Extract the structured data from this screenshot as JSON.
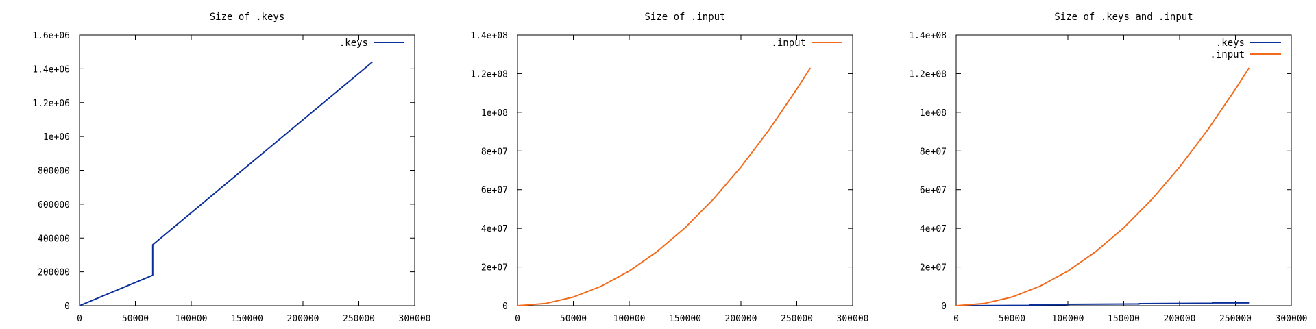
{
  "colors": {
    "keys": "#0b2f9a",
    "input": "#f26b1d"
  },
  "chart_data": [
    {
      "type": "line",
      "title": "Size of .keys",
      "xlim": [
        0,
        300000
      ],
      "ylim": [
        0,
        1600000
      ],
      "xticks": [
        0,
        50000,
        100000,
        150000,
        200000,
        250000,
        300000
      ],
      "xtick_labels": [
        "0",
        "50000",
        "100000",
        "150000",
        "200000",
        "250000",
        "300000"
      ],
      "yticks": [
        0,
        200000,
        400000,
        600000,
        800000,
        1000000,
        1200000,
        1400000,
        1600000
      ],
      "ytick_labels": [
        "0",
        "200000",
        "400000",
        "600000",
        "800000",
        "1e+06",
        "1.2e+06",
        "1.4e+06",
        "1.6e+06"
      ],
      "legend_position": "top-right",
      "series": [
        {
          "name": ".keys",
          "color": "#0b2f9a",
          "x": [
            0,
            65536,
            65536,
            262144
          ],
          "y": [
            0,
            180000,
            360000,
            1440000
          ]
        }
      ]
    },
    {
      "type": "line",
      "title": "Size of .input",
      "xlim": [
        0,
        300000
      ],
      "ylim": [
        0,
        140000000
      ],
      "xticks": [
        0,
        50000,
        100000,
        150000,
        200000,
        250000,
        300000
      ],
      "xtick_labels": [
        "0",
        "50000",
        "100000",
        "150000",
        "200000",
        "250000",
        "300000"
      ],
      "yticks": [
        0,
        20000000,
        40000000,
        60000000,
        80000000,
        100000000,
        120000000,
        140000000
      ],
      "ytick_labels": [
        "0",
        "2e+07",
        "4e+07",
        "6e+07",
        "8e+07",
        "1e+08",
        "1.2e+08",
        "1.4e+08"
      ],
      "legend_position": "top-right",
      "series": [
        {
          "name": ".input",
          "color": "#f26b1d",
          "x": [
            0,
            25000,
            50000,
            75000,
            100000,
            125000,
            150000,
            175000,
            200000,
            225000,
            250000,
            262144
          ],
          "y": [
            0,
            1120000,
            4480000,
            10100000,
            17900000,
            28000000,
            40300000,
            54900000,
            71700000,
            90800000,
            112000000,
            123000000
          ]
        }
      ]
    },
    {
      "type": "line",
      "title": "Size of .keys and .input",
      "xlim": [
        0,
        300000
      ],
      "ylim": [
        0,
        140000000
      ],
      "xticks": [
        0,
        50000,
        100000,
        150000,
        200000,
        250000,
        300000
      ],
      "xtick_labels": [
        "0",
        "50000",
        "100000",
        "150000",
        "200000",
        "250000",
        "300000"
      ],
      "yticks": [
        0,
        20000000,
        40000000,
        60000000,
        80000000,
        100000000,
        120000000,
        140000000
      ],
      "ytick_labels": [
        "0",
        "2e+07",
        "4e+07",
        "6e+07",
        "8e+07",
        "1e+08",
        "1.2e+08",
        "1.4e+08"
      ],
      "legend_position": "top-right",
      "series": [
        {
          "name": ".keys",
          "color": "#0b2f9a",
          "x": [
            0,
            65536,
            65536,
            98304,
            98304,
            163840,
            163840,
            229376,
            229376,
            262144
          ],
          "y": [
            0,
            180000,
            360000,
            540000,
            720000,
            900000,
            1080000,
            1260000,
            1440000,
            1440000
          ]
        },
        {
          "name": ".input",
          "color": "#f26b1d",
          "x": [
            0,
            25000,
            50000,
            75000,
            100000,
            125000,
            150000,
            175000,
            200000,
            225000,
            250000,
            262144
          ],
          "y": [
            0,
            1120000,
            4480000,
            10100000,
            17900000,
            28000000,
            40300000,
            54900000,
            71700000,
            90800000,
            112000000,
            123000000
          ]
        }
      ]
    }
  ]
}
